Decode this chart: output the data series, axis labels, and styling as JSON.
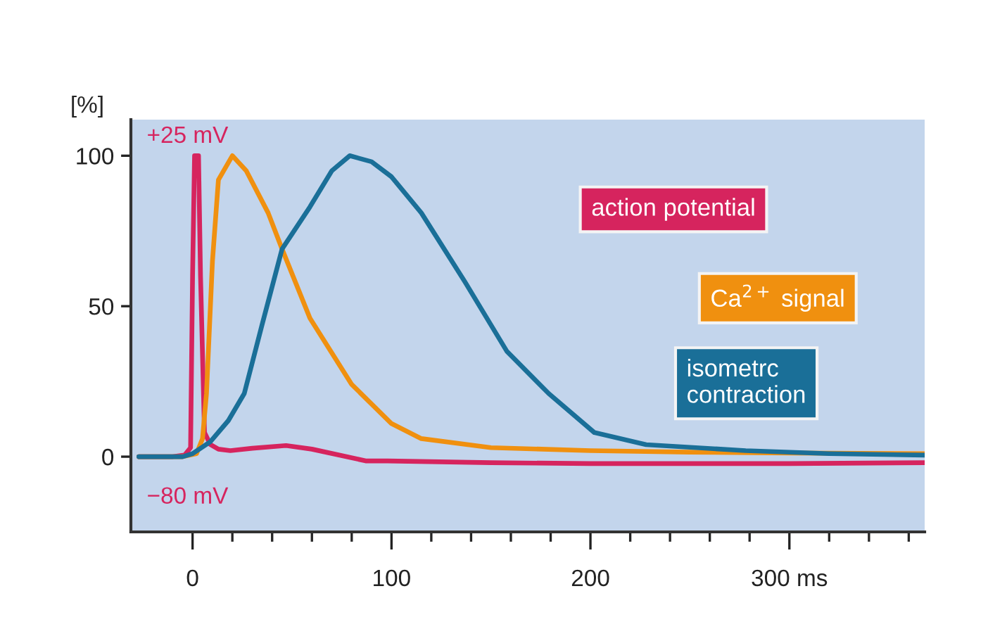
{
  "chart_data": {
    "type": "line",
    "ylabel": "[%]",
    "xlim": [
      -31,
      368
    ],
    "ylim": [
      -25,
      112
    ],
    "xticks": [
      0,
      {
        "value": 20,
        "label": null
      },
      {
        "value": 40,
        "label": null
      },
      {
        "value": 60,
        "label": null
      },
      {
        "value": 80,
        "label": null
      },
      100,
      {
        "value": 120,
        "label": null
      },
      {
        "value": 140,
        "label": null
      },
      {
        "value": 160,
        "label": null
      },
      {
        "value": 180,
        "label": null
      },
      200,
      {
        "value": 220,
        "label": null
      },
      {
        "value": 240,
        "label": null
      },
      {
        "value": 260,
        "label": null
      },
      {
        "value": 280,
        "label": null
      },
      {
        "value": 300,
        "label": "300 ms"
      },
      {
        "value": 320,
        "label": null
      },
      {
        "value": 340,
        "label": null
      },
      {
        "value": 360,
        "label": null
      }
    ],
    "yticks": [
      0,
      50,
      100
    ],
    "grid": false,
    "marker": "none",
    "line_style": "solid",
    "annotations": [
      "+25 mV",
      "−80 mV"
    ],
    "series": [
      {
        "name": "action potential",
        "color": "#d6245e",
        "x": [
          -27,
          -10,
          -4,
          -1,
          0,
          1,
          3,
          4,
          6,
          9,
          13,
          19,
          30,
          47,
          60,
          87,
          98,
          150,
          200,
          250,
          300,
          368
        ],
        "values": [
          0,
          0,
          0.5,
          3,
          60,
          100,
          100,
          60,
          8,
          4,
          2.5,
          2,
          2.8,
          3.7,
          2.5,
          -1.4,
          -1.4,
          -2,
          -2.3,
          -2.3,
          -2.3,
          -2
        ]
      },
      {
        "name": "Ca$^{2+}$ signal",
        "color": "#f0900f",
        "x": [
          -27,
          -5,
          2,
          5,
          7,
          10,
          13,
          20,
          27,
          38,
          45,
          59,
          80,
          100,
          115,
          150,
          200,
          250,
          300,
          368
        ],
        "values": [
          0,
          0,
          1,
          6,
          21,
          65,
          92,
          100,
          95,
          81,
          69,
          46,
          24,
          11,
          6,
          3,
          2,
          1.5,
          1.2,
          1
        ]
      },
      {
        "name": "isometrc contraction",
        "color": "#1a6f98",
        "x": [
          -27,
          -5,
          0,
          9,
          18,
          26,
          35,
          45,
          59,
          70,
          79,
          90,
          100,
          115,
          137,
          158,
          179,
          202,
          228,
          278,
          320,
          368
        ],
        "values": [
          0,
          0,
          1,
          5,
          12,
          21,
          44,
          69,
          83,
          95,
          100,
          98,
          93,
          81,
          58,
          35,
          21,
          8,
          4,
          2,
          1,
          0.5
        ]
      }
    ]
  }
}
